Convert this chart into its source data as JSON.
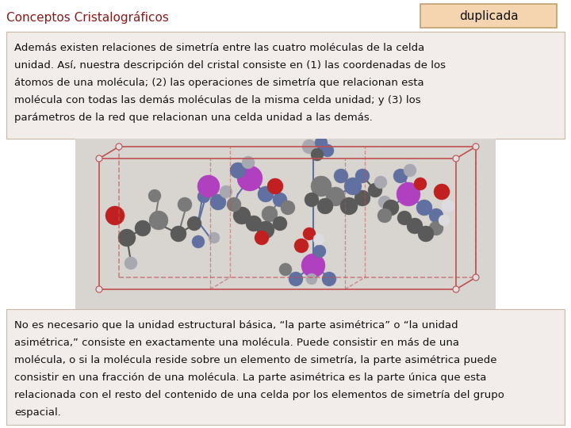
{
  "title": "Conceptos Cristalográficos",
  "badge": "duplicada",
  "title_color": "#8B1A1A",
  "badge_bg": "#F5D5B0",
  "badge_border": "#C0A070",
  "top_box_bg": "#F2EDEA",
  "top_box_border": "#C8B8A8",
  "bottom_box_bg": "#F2EDEA",
  "bottom_box_border": "#C8B8A8",
  "bg_color": "#FFFFFF",
  "top_text_line1": "Además existen relaciones de simetría entre las cuatro moléculas de la celda",
  "top_text_line2": "unidad. Así, nuestra descripción del cristal consiste en (1) las coordenadas de los",
  "top_text_line3": "átomos de una molécula; (2) las operaciones de simetría que relacionan esta",
  "top_text_line4": "molécula con todas las demás moléculas de la misma celda unidad; y (3) los",
  "top_text_line5": "parámetros de la red que relacionan una celda unidad a las demás.",
  "bottom_text_line1": "No es necesario que la unidad estructural básica, “la parte asimétrica” o “la unidad",
  "bottom_text_line2": "asimétrica,” consiste en exactamente una molécula. Puede consistir en más de una",
  "bottom_text_line3": "molécula, o si la molécula reside sobre un elemento de simetría, la parte asimétrica puede",
  "bottom_text_line4": "consistir en una fracción de una molécula. La parte asimétrica es la parte única que esta",
  "bottom_text_line5": "relacionada con el resto del contenido de una celda por los elementos de simetría del grupo",
  "bottom_text_line6": "espacial.",
  "text_color": "#111111",
  "font_size_title": 11,
  "font_size_badge": 11,
  "font_size_text": 9.5,
  "img_bg": "#E0E0E0",
  "cell_color": "#C05050",
  "cell_lw": 1.2
}
